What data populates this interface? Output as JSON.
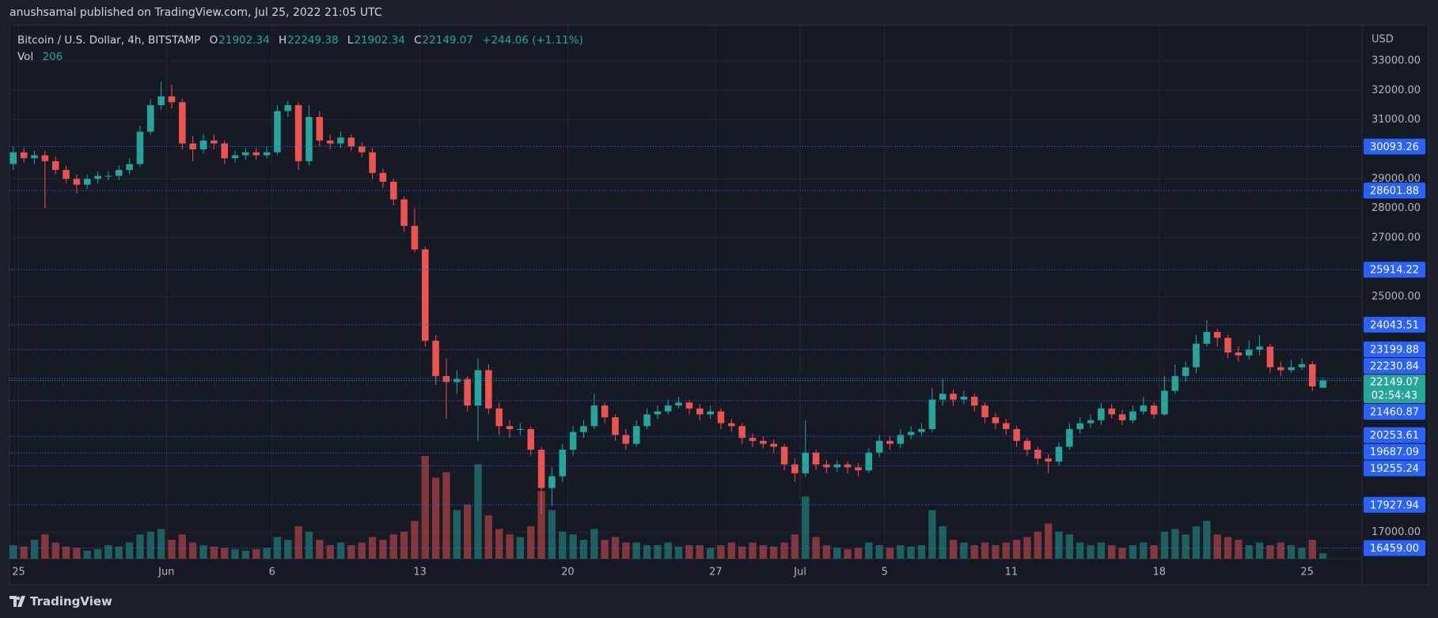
{
  "chart_data": {
    "type": "candlestick",
    "published": "anushsamal published on TradingView.com, Jul 25, 2022 21:05 UTC",
    "title": "Bitcoin / U.S. Dollar, 4h, BITSTAMP",
    "legend_labels": {
      "open": "O",
      "high": "H",
      "low": "L",
      "close": "C",
      "volume": "Vol"
    },
    "change": "+244.06 (+1.11%)",
    "y_axis_label": "USD",
    "countdown": "02:54:43",
    "brand": "TradingView",
    "up_color": "#26a69a",
    "down_color": "#ef5350",
    "level_color": "#2962ff",
    "grid": true,
    "x": [
      -0.25,
      0.25,
      0.75,
      1.25,
      1.75,
      2.25,
      2.75,
      3.25,
      3.75,
      4.25,
      4.75,
      5.25,
      5.75,
      6.25,
      6.75,
      7.25,
      7.75,
      8.25,
      8.75,
      9.25,
      9.75,
      10.25,
      10.75,
      11.25,
      11.75,
      12.25,
      12.75,
      13.25,
      13.75,
      14.25,
      14.75,
      15.25,
      15.75,
      16.25,
      16.75,
      17.25,
      17.75,
      18.25,
      18.75,
      19.25,
      19.75,
      20.25,
      20.75,
      21.25,
      21.75,
      22.25,
      22.75,
      23.25,
      23.75,
      24.25,
      24.75,
      25.25,
      25.75,
      26.25,
      26.75,
      27.25,
      27.75,
      28.25,
      28.75,
      29.25,
      29.75,
      30.25,
      30.75,
      31.25,
      31.75,
      32.25,
      32.75,
      33.25,
      33.75,
      34.25,
      34.75,
      35.25,
      35.75,
      36.25,
      36.75,
      37.25,
      37.75,
      38.25,
      38.75,
      39.25,
      39.75,
      40.25,
      40.75,
      41.25,
      41.75,
      42.25,
      42.75,
      43.25,
      43.75,
      44.25,
      44.75,
      45.25,
      45.75,
      46.25,
      46.75,
      47.25,
      47.75,
      48.25,
      48.75,
      49.25,
      49.75,
      50.25,
      50.75,
      51.25,
      51.75,
      52.25,
      52.75,
      53.25,
      53.75,
      54.25,
      54.75,
      55.25,
      55.75,
      56.25,
      56.75,
      57.25,
      57.75,
      58.25,
      58.75,
      59.25,
      59.75,
      60.25,
      60.75,
      61.25,
      61.75
    ],
    "open": [
      29500,
      29900,
      29700,
      29800,
      29600,
      29300,
      29000,
      28800,
      29000,
      29100,
      29100,
      29300,
      29500,
      30600,
      31500,
      31800,
      31600,
      30200,
      30000,
      30300,
      30200,
      29700,
      29800,
      29900,
      29800,
      29900,
      31300,
      31500,
      29600,
      31100,
      30300,
      30200,
      30400,
      30100,
      29900,
      29200,
      28900,
      28300,
      27400,
      26600,
      23500,
      22300,
      22100,
      22200,
      21300,
      22500,
      21200,
      20600,
      20500,
      20500,
      19800,
      18500,
      18900,
      19800,
      20400,
      20600,
      21300,
      20900,
      20300,
      20000,
      20600,
      21000,
      21100,
      21300,
      21400,
      21200,
      21000,
      21100,
      20700,
      20600,
      20200,
      20100,
      20000,
      19900,
      19300,
      19000,
      19700,
      19300,
      19200,
      19300,
      19200,
      19100,
      19700,
      20100,
      20000,
      20300,
      20400,
      20500,
      21500,
      21700,
      21500,
      21600,
      21300,
      20900,
      20700,
      20500,
      20100,
      19800,
      19500,
      19400,
      19900,
      20500,
      20700,
      20800,
      21200,
      21000,
      20800,
      21100,
      21300,
      21000,
      21800,
      22300,
      22600,
      23400,
      23800,
      23600,
      23100,
      23000,
      23200,
      23300,
      22600,
      22500,
      22600,
      22700,
      21902.34
    ],
    "high": [
      30100,
      30050,
      29950,
      29950,
      29750,
      29450,
      29150,
      29150,
      29250,
      29250,
      29450,
      29700,
      30800,
      31700,
      32300,
      32200,
      31700,
      30450,
      30500,
      30500,
      30300,
      29950,
      30050,
      30050,
      30100,
      31500,
      31650,
      31600,
      31500,
      31300,
      30500,
      30600,
      30500,
      30250,
      30050,
      29350,
      29000,
      28400,
      28000,
      26700,
      23700,
      22900,
      22500,
      22300,
      22900,
      22700,
      21400,
      20800,
      20700,
      20600,
      19900,
      19200,
      20000,
      20600,
      20800,
      21700,
      21400,
      21000,
      20500,
      20800,
      21200,
      21300,
      21500,
      21600,
      21500,
      21350,
      21300,
      21200,
      20850,
      20700,
      20350,
      20250,
      20150,
      20000,
      19500,
      20800,
      19800,
      19450,
      19450,
      19400,
      19350,
      19850,
      20300,
      20250,
      20500,
      20600,
      20700,
      21900,
      22200,
      21850,
      21800,
      21700,
      21400,
      21050,
      20850,
      20600,
      20200,
      19900,
      19650,
      20050,
      20700,
      20900,
      21000,
      21400,
      21350,
      21150,
      21300,
      21600,
      21400,
      22300,
      22700,
      22800,
      23700,
      24200,
      23900,
      23700,
      23300,
      23500,
      23700,
      23400,
      22800,
      22850,
      22900,
      22800,
      22249.38
    ],
    "low": [
      29300,
      29550,
      29500,
      28000,
      29150,
      28850,
      28500,
      28650,
      28850,
      28950,
      28950,
      29150,
      29400,
      30500,
      31350,
      31400,
      30000,
      29600,
      29850,
      30000,
      29500,
      29550,
      29650,
      29650,
      29700,
      29800,
      31100,
      29300,
      29450,
      30100,
      30000,
      30050,
      29950,
      29750,
      29000,
      28700,
      28100,
      27200,
      26500,
      23300,
      22000,
      20850,
      21700,
      21100,
      20100,
      21000,
      20300,
      20200,
      20300,
      19600,
      17600,
      17900,
      18700,
      19600,
      20200,
      20500,
      20700,
      20100,
      19800,
      19900,
      20500,
      20850,
      21000,
      21200,
      21000,
      20800,
      20850,
      20500,
      20400,
      20000,
      19900,
      19850,
      19700,
      19100,
      18700,
      18900,
      19100,
      19000,
      19050,
      19000,
      18900,
      19000,
      19550,
      19800,
      19850,
      20150,
      20250,
      20400,
      21300,
      21300,
      21350,
      21100,
      20700,
      20500,
      20300,
      19900,
      19600,
      19300,
      19000,
      19250,
      19800,
      20350,
      20550,
      20650,
      20850,
      20650,
      20700,
      21000,
      20850,
      20950,
      21700,
      22100,
      22400,
      23300,
      23300,
      22900,
      22800,
      22850,
      23000,
      22400,
      22300,
      22400,
      22500,
      21800,
      21902.34
    ],
    "close": [
      29900,
      29700,
      29800,
      29600,
      29300,
      29000,
      28800,
      29000,
      29100,
      29100,
      29300,
      29500,
      30600,
      31500,
      31800,
      31600,
      30200,
      30000,
      30300,
      30200,
      29700,
      29800,
      29900,
      29800,
      29900,
      31300,
      31500,
      29600,
      31100,
      30300,
      30200,
      30400,
      30100,
      29900,
      29200,
      28900,
      28300,
      27400,
      26600,
      23500,
      22300,
      22100,
      22200,
      21300,
      22500,
      21200,
      20600,
      20500,
      20500,
      19800,
      18500,
      18900,
      19800,
      20400,
      20600,
      21300,
      20900,
      20300,
      20000,
      20600,
      21000,
      21100,
      21300,
      21400,
      21200,
      21000,
      21100,
      20700,
      20600,
      20200,
      20100,
      20000,
      19900,
      19300,
      19000,
      19700,
      19300,
      19200,
      19300,
      19200,
      19100,
      19700,
      20100,
      20000,
      20300,
      20400,
      20500,
      21500,
      21700,
      21500,
      21600,
      21300,
      20900,
      20700,
      20500,
      20100,
      19800,
      19500,
      19400,
      19900,
      20500,
      20700,
      20800,
      21200,
      21000,
      20800,
      21100,
      21300,
      21000,
      21800,
      22300,
      22600,
      23400,
      23800,
      23600,
      23100,
      23000,
      23200,
      23300,
      22600,
      22500,
      22600,
      22700,
      21950,
      22149.07
    ],
    "volume": [
      500,
      450,
      700,
      900,
      600,
      450,
      400,
      300,
      350,
      500,
      450,
      600,
      900,
      1000,
      1100,
      700,
      900,
      600,
      500,
      450,
      400,
      350,
      300,
      350,
      400,
      800,
      700,
      1200,
      1000,
      700,
      500,
      600,
      500,
      600,
      800,
      700,
      900,
      1000,
      1400,
      3800,
      3000,
      3200,
      1800,
      2000,
      3500,
      1600,
      1100,
      900,
      800,
      1200,
      2500,
      1800,
      1000,
      900,
      700,
      1100,
      700,
      800,
      600,
      600,
      500,
      500,
      600,
      450,
      500,
      500,
      400,
      500,
      600,
      450,
      600,
      500,
      450,
      600,
      900,
      2300,
      800,
      500,
      400,
      350,
      400,
      600,
      500,
      400,
      500,
      450,
      500,
      1800,
      1200,
      700,
      600,
      500,
      600,
      500,
      600,
      700,
      800,
      1000,
      1300,
      1000,
      900,
      600,
      500,
      600,
      500,
      400,
      500,
      600,
      500,
      1000,
      1100,
      900,
      1200,
      1400,
      900,
      800,
      700,
      500,
      600,
      500,
      600,
      500,
      400,
      700,
      206
    ],
    "xlim": [
      -0.43,
      63.6
    ],
    "xticks": [
      {
        "value": 0,
        "label": "25"
      },
      {
        "value": 7,
        "label": "Jun"
      },
      {
        "value": 12,
        "label": "6"
      },
      {
        "value": 19,
        "label": "13"
      },
      {
        "value": 26,
        "label": "20"
      },
      {
        "value": 33,
        "label": "27"
      },
      {
        "value": 37,
        "label": "Jul"
      },
      {
        "value": 41,
        "label": "5"
      },
      {
        "value": 47,
        "label": "11"
      },
      {
        "value": 54,
        "label": "18"
      },
      {
        "value": 61,
        "label": "25"
      }
    ],
    "ylim": [
      16097,
      34214
    ],
    "yticks": [
      {
        "value": 17000,
        "label": "17000.00"
      },
      {
        "value": 25000,
        "label": "25000.00"
      },
      {
        "value": 27000,
        "label": "27000.00"
      },
      {
        "value": 28000,
        "label": "28000.00"
      },
      {
        "value": 29000,
        "label": "29000.00"
      },
      {
        "value": 31000,
        "label": "31000.00"
      },
      {
        "value": 32000,
        "label": "32000.00"
      },
      {
        "value": 33000,
        "label": "33000.00"
      }
    ],
    "levels": [
      30093.26,
      28601.88,
      25914.22,
      24043.51,
      23199.88,
      22230.84,
      21460.87,
      20253.61,
      19687.09,
      19255.24,
      17927.94,
      {
        "value": 16459,
        "label": "16459.00"
      }
    ]
  }
}
